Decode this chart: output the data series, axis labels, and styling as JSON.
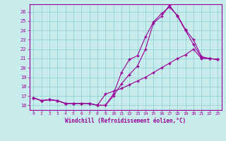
{
  "xlabel": "Windchill (Refroidissement éolien,°C)",
  "bg_color": "#c8ecec",
  "line_color": "#990099",
  "xlim": [
    -0.5,
    23.5
  ],
  "ylim": [
    15.5,
    26.8
  ],
  "xticks": [
    0,
    1,
    2,
    3,
    4,
    5,
    6,
    7,
    8,
    9,
    10,
    11,
    12,
    13,
    14,
    15,
    16,
    17,
    18,
    19,
    20,
    21,
    22,
    23
  ],
  "yticks": [
    16,
    17,
    18,
    19,
    20,
    21,
    22,
    23,
    24,
    25,
    26
  ],
  "curve1_x": [
    0,
    1,
    2,
    3,
    4,
    5,
    6,
    7,
    8,
    9,
    10,
    11,
    12,
    13,
    14,
    15,
    16,
    17,
    18,
    19,
    20,
    21,
    22,
    23
  ],
  "curve1_y": [
    16.8,
    16.5,
    16.6,
    16.5,
    16.2,
    16.2,
    16.2,
    16.2,
    16.0,
    16.0,
    17.2,
    19.5,
    20.9,
    21.3,
    23.3,
    24.9,
    25.8,
    26.5,
    25.6,
    24.1,
    23.0,
    21.2,
    21.0,
    20.9
  ],
  "curve2_x": [
    0,
    1,
    2,
    3,
    4,
    5,
    6,
    7,
    8,
    9,
    10,
    11,
    12,
    13,
    14,
    15,
    16,
    17,
    18,
    19,
    20,
    21,
    22,
    23
  ],
  "curve2_y": [
    16.8,
    16.5,
    16.6,
    16.5,
    16.2,
    16.2,
    16.2,
    16.2,
    16.0,
    16.0,
    17.0,
    18.3,
    19.3,
    20.2,
    22.0,
    24.8,
    25.5,
    26.7,
    25.5,
    24.0,
    22.5,
    21.1,
    21.0,
    20.9
  ],
  "curve3_x": [
    0,
    1,
    2,
    3,
    4,
    5,
    6,
    7,
    8,
    9,
    10,
    11,
    12,
    13,
    14,
    15,
    16,
    17,
    18,
    19,
    20,
    21,
    22,
    23
  ],
  "curve3_y": [
    16.8,
    16.5,
    16.6,
    16.5,
    16.2,
    16.2,
    16.2,
    16.2,
    16.0,
    17.2,
    17.5,
    17.8,
    18.2,
    18.6,
    19.0,
    19.5,
    20.0,
    20.5,
    21.0,
    21.4,
    22.0,
    21.0,
    21.0,
    20.9
  ]
}
